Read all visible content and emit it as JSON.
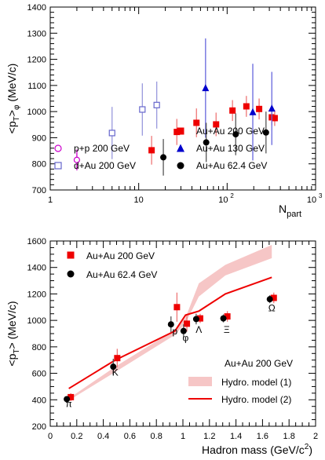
{
  "chart_data": [
    {
      "type": "scatter",
      "xscale": "log",
      "xlim": [
        1,
        1000
      ],
      "ylim": [
        700,
        1400
      ],
      "xlabel_main": "N",
      "xlabel_sub": "part",
      "ylabel": "<p_T>_φ (MeV/c)",
      "ylabel_parts": {
        "a": "<p",
        "b": "T",
        "c": ">",
        "d": "φ",
        "e": " (MeV/c)"
      },
      "xtick_labels": [
        "1",
        "10",
        "10",
        "10"
      ],
      "xtick_exponents": [
        "",
        "",
        "2",
        "3"
      ],
      "ytick_labels": [
        "700",
        "800",
        "900",
        "1000",
        "1100",
        "1200",
        "1300",
        "1400"
      ],
      "legend": [
        {
          "label": "p+p 200 GeV",
          "marker": "open-circle",
          "color": "#cc00cc"
        },
        {
          "label": "d+Au 200 GeV",
          "marker": "open-square",
          "color": "#6666cc"
        },
        {
          "label": "Au+Au 200 GeV",
          "marker": "filled-square",
          "color": "#ee0000"
        },
        {
          "label": "Au+Au 130 GeV",
          "marker": "filled-triangle",
          "color": "#0000cc"
        },
        {
          "label": "Au+Au 62.4 GeV",
          "marker": "filled-circle",
          "color": "#000000"
        }
      ],
      "series": [
        {
          "name": "p+p 200 GeV",
          "color": "#cc00cc",
          "err_color": "#cc00cc",
          "marker": "open-circle",
          "points": [
            {
              "x": 2,
              "y": 815,
              "err": 40
            }
          ]
        },
        {
          "name": "d+Au 200 GeV",
          "color": "#6666cc",
          "err_color": "#9999dd",
          "marker": "open-square",
          "points": [
            {
              "x": 5,
              "y": 918,
              "err": 100
            },
            {
              "x": 11,
              "y": 1008,
              "err": 100
            },
            {
              "x": 16,
              "y": 1025,
              "err": 90
            }
          ]
        },
        {
          "name": "Au+Au 200 GeV",
          "color": "#ee0000",
          "err_color": "#ee7777",
          "marker": "filled-square",
          "points": [
            {
              "x": 14,
              "y": 852,
              "err": 55
            },
            {
              "x": 27,
              "y": 922,
              "err": 50
            },
            {
              "x": 45,
              "y": 957,
              "err": 55
            },
            {
              "x": 75,
              "y": 951,
              "err": 45
            },
            {
              "x": 115,
              "y": 1004,
              "err": 40
            },
            {
              "x": 165,
              "y": 1020,
              "err": 40
            },
            {
              "x": 230,
              "y": 1010,
              "err": 40
            },
            {
              "x": 320,
              "y": 978,
              "err": 30
            },
            {
              "x": 345,
              "y": 975,
              "err": 30
            }
          ]
        },
        {
          "name": "Au+Au 130 GeV",
          "color": "#0000cc",
          "err_color": "#6666dd",
          "marker": "filled-triangle",
          "points": [
            {
              "x": 57,
              "y": 1090,
              "err": 190
            },
            {
              "x": 195,
              "y": 998,
              "err": 185
            },
            {
              "x": 320,
              "y": 1012,
              "err": 140
            }
          ]
        },
        {
          "name": "Au+Au 62.4 GeV",
          "color": "#000000",
          "err_color": "#555555",
          "marker": "filled-circle",
          "points": [
            {
              "x": 19,
              "y": 825,
              "err": 70
            },
            {
              "x": 58,
              "y": 882,
              "err": 75
            },
            {
              "x": 125,
              "y": 913,
              "err": 80
            },
            {
              "x": 275,
              "y": 920,
              "err": 80
            }
          ]
        }
      ]
    },
    {
      "type": "scatter",
      "xlim": [
        0,
        2
      ],
      "ylim": [
        200,
        1600
      ],
      "xlabel": "Hadron mass (GeV/c²)",
      "xlabel_parts": {
        "a": "Hadron mass (GeV/c",
        "b": "2",
        "c": ")"
      },
      "ylabel": "<p_T> (MeV/c)",
      "ylabel_parts": {
        "a": "<p",
        "b": "T",
        "c": "> (MeV/c)"
      },
      "xtick_labels": [
        "0",
        "0.2",
        "0.4",
        "0.6",
        "0.8",
        "1",
        "1.2",
        "1.4",
        "1.6",
        "1.8",
        "2"
      ],
      "ytick_labels": [
        "200",
        "400",
        "600",
        "800",
        "1000",
        "1200",
        "1400",
        "1600"
      ],
      "legend_top": [
        {
          "label": "Au+Au 200 GeV",
          "marker": "filled-square",
          "color": "#ee0000"
        },
        {
          "label": "Au+Au 62.4 GeV",
          "marker": "filled-circle",
          "color": "#000000"
        }
      ],
      "legend_bottom_title": "Au+Au 200 GeV",
      "legend_bottom": [
        {
          "label": "Hydro. model (1)",
          "style": "band",
          "color": "#f6c6c6"
        },
        {
          "label": "Hydro. model (2)",
          "style": "line",
          "color": "#ee0000"
        }
      ],
      "particle_labels": [
        {
          "text": "π",
          "x": 0.14,
          "y": 345
        },
        {
          "text": "K",
          "x": 0.49,
          "y": 582
        },
        {
          "text": "p",
          "x": 0.94,
          "y": 895
        },
        {
          "text": "φ",
          "x": 1.02,
          "y": 845
        },
        {
          "text": "Λ",
          "x": 1.12,
          "y": 905
        },
        {
          "text": "Ξ",
          "x": 1.33,
          "y": 905
        },
        {
          "text": "Ω",
          "x": 1.67,
          "y": 1070
        }
      ],
      "hydro_band": {
        "x": [
          0.14,
          0.49,
          0.94,
          1.02,
          1.12,
          1.32,
          1.67
        ],
        "upper": [
          410,
          650,
          930,
          1020,
          1280,
          1420,
          1570
        ],
        "lower": [
          395,
          610,
          890,
          980,
          1180,
          1340,
          1470
        ]
      },
      "hydro_line": {
        "x": [
          0.14,
          0.49,
          0.94,
          1.02,
          1.12,
          1.32,
          1.67
        ],
        "y": [
          485,
          700,
          920,
          1040,
          1070,
          1200,
          1325
        ]
      },
      "series": [
        {
          "name": "Au+Au 200 GeV",
          "color": "#ee0000",
          "err_color": "#ee7777",
          "marker": "filled-square",
          "points": [
            {
              "x": 0.155,
              "y": 420,
              "err": 30
            },
            {
              "x": 0.505,
              "y": 715,
              "err": 70
            },
            {
              "x": 0.955,
              "y": 1100,
              "err": 110
            },
            {
              "x": 1.03,
              "y": 975,
              "err": 60
            },
            {
              "x": 1.13,
              "y": 1015,
              "err": 35
            },
            {
              "x": 1.335,
              "y": 1030,
              "err": 40
            },
            {
              "x": 1.685,
              "y": 1170,
              "err": 40
            }
          ]
        },
        {
          "name": "Au+Au 62.4 GeV",
          "color": "#000000",
          "err_color": "#555555",
          "marker": "filled-circle",
          "points": [
            {
              "x": 0.125,
              "y": 405,
              "err": 20
            },
            {
              "x": 0.475,
              "y": 650,
              "err": 60
            },
            {
              "x": 0.91,
              "y": 970,
              "err": 60
            },
            {
              "x": 1.005,
              "y": 920,
              "err": 50
            },
            {
              "x": 1.1,
              "y": 1010,
              "err": 40
            },
            {
              "x": 1.305,
              "y": 1015,
              "err": 30
            },
            {
              "x": 1.655,
              "y": 1160,
              "err": 30
            }
          ]
        }
      ]
    }
  ]
}
